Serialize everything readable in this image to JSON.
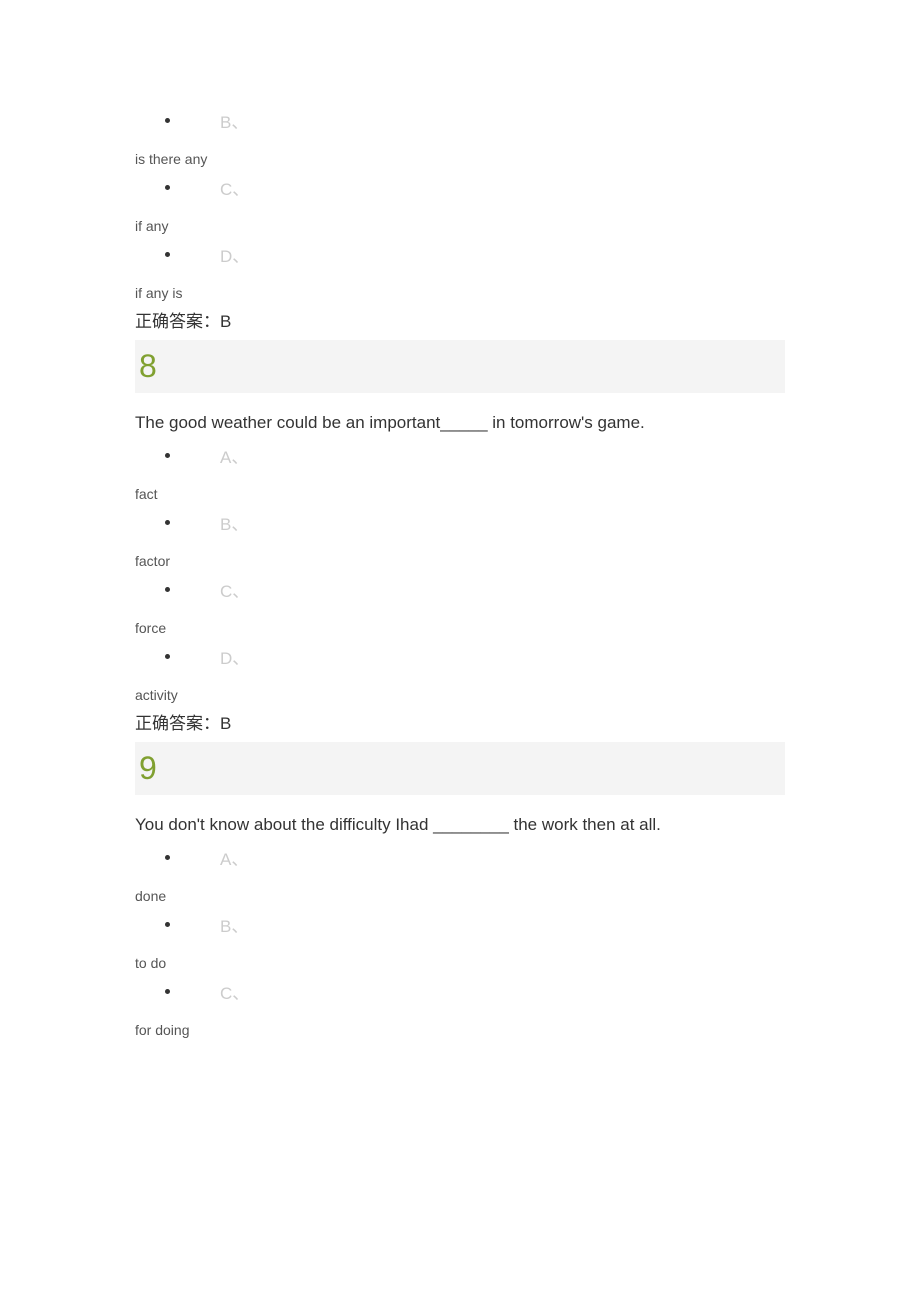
{
  "question7_partial": {
    "options": [
      {
        "letter": "B、",
        "text": "is there any"
      },
      {
        "letter": "C、",
        "text": "if any"
      },
      {
        "letter": "D、",
        "text": "if any is"
      }
    ],
    "answer_label": "正确答案：",
    "answer_value": "B"
  },
  "question8": {
    "number": "8",
    "text": "The good weather could be an important_____ in tomorrow's game.",
    "options": [
      {
        "letter": "A、",
        "text": "fact"
      },
      {
        "letter": "B、",
        "text": "factor"
      },
      {
        "letter": "C、",
        "text": "force"
      },
      {
        "letter": "D、",
        "text": "activity"
      }
    ],
    "answer_label": "正确答案：",
    "answer_value": "B"
  },
  "question9": {
    "number": "9",
    "text": "You don't know about the difficulty Ihad ________ the work then at all.",
    "options": [
      {
        "letter": "A、",
        "text": "done"
      },
      {
        "letter": "B、",
        "text": "to do"
      },
      {
        "letter": "C、",
        "text": "for doing"
      }
    ]
  },
  "colors": {
    "question_number": "#80a030",
    "option_letter": "#cccccc",
    "text_primary": "#333333",
    "text_secondary": "#555555",
    "number_bar_bg": "#f4f4f4",
    "background": "#ffffff"
  },
  "fonts": {
    "question_number_size": 32,
    "question_text_size": 17,
    "option_letter_size": 17,
    "option_text_size": 14
  }
}
